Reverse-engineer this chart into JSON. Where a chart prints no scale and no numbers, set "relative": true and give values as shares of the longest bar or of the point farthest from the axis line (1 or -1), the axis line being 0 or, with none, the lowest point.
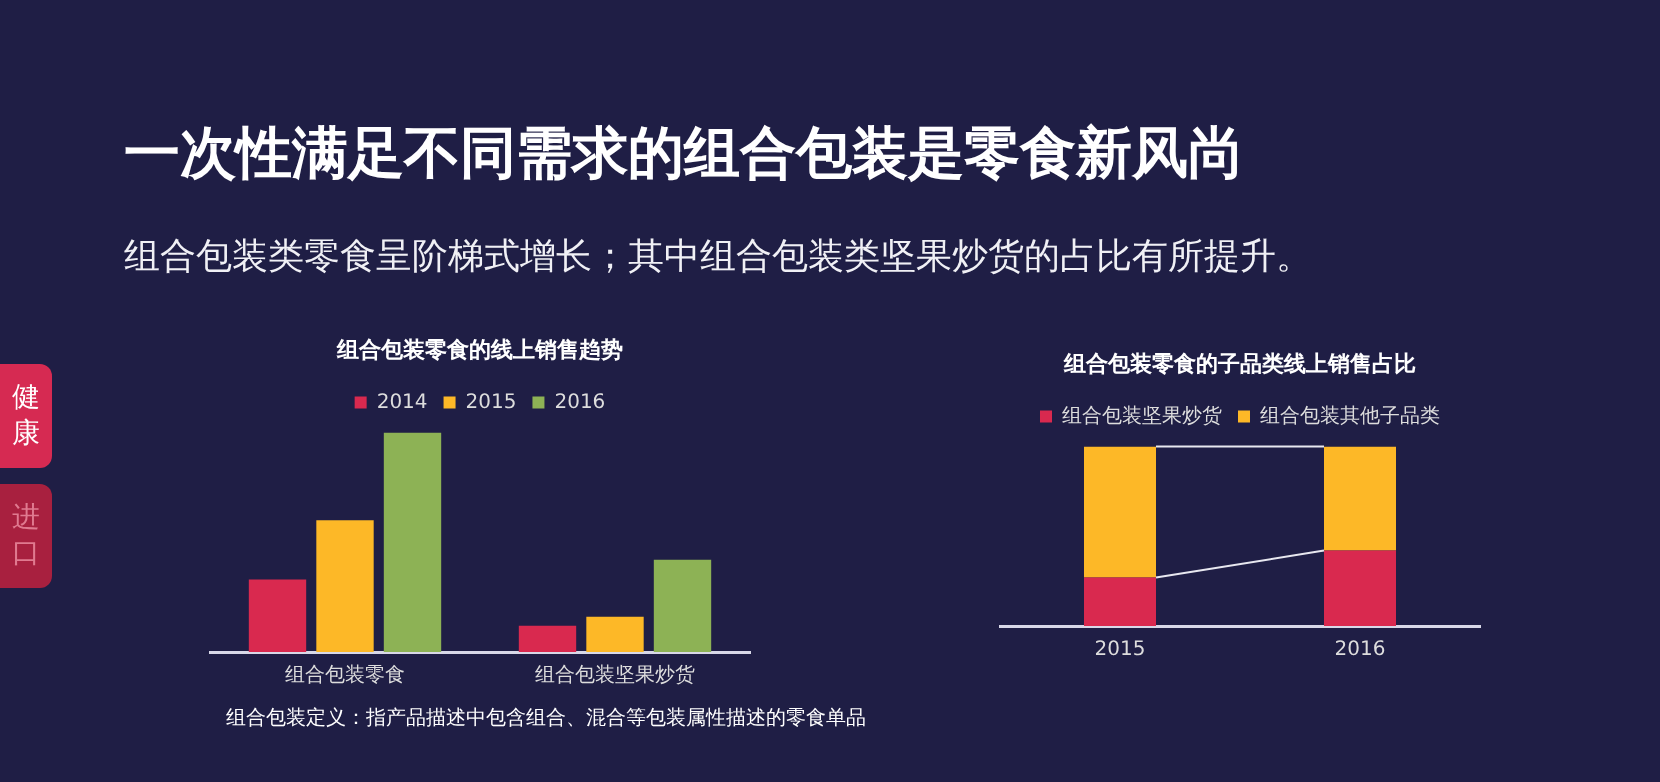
{
  "chart_data": [
    {
      "type": "other",
      "title": "一次性满足不同需求的组合包装是零食新风尚",
      "subtitle": "组合包装类零食呈阶梯式增长；其中组合包装类坚果炒货的占比有所提升。",
      "annotations": [
        "健康",
        "进口"
      ]
    },
    {
      "type": "bar",
      "title": "组合包装零食的线上销售趋势",
      "relative": true,
      "categories": [
        "组合包装零食",
        "组合包装坚果炒货"
      ],
      "legend": "top",
      "grid": false,
      "series": [
        {
          "name": "2014",
          "color": "#d9294f",
          "values": [
            0.33,
            0.12
          ]
        },
        {
          "name": "2015",
          "color": "#fdb827",
          "values": [
            0.6,
            0.16
          ]
        },
        {
          "name": "2016",
          "color": "#8db255",
          "values": [
            1,
            0.42
          ]
        }
      ],
      "annotations": [
        "组合包装定义：指产品描述中包含组合、混合等包装属性描述的零食单品"
      ]
    },
    {
      "type": "bar",
      "title": "组合包装零食的子品类线上销售占比",
      "relative": true,
      "stacked": true,
      "categories": [
        "2015",
        "2016"
      ],
      "legend": "top",
      "grid": false,
      "series": [
        {
          "name": "组合包装坚果炒货",
          "color": "#d9294f",
          "values": [
            0.27,
            0.42
          ]
        },
        {
          "name": "组合包装其他子品类",
          "color": "#fdb827",
          "values": [
            0.73,
            0.58
          ]
        }
      ]
    }
  ]
}
